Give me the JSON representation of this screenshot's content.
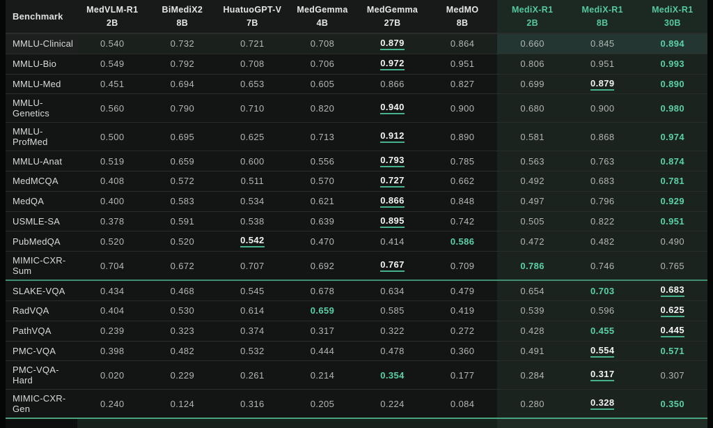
{
  "table": {
    "benchmark_header": "Benchmark",
    "columns": [
      {
        "name": "MedVLM-R1",
        "size": "2B",
        "highlight": false
      },
      {
        "name": "BiMediX2",
        "size": "8B",
        "highlight": false
      },
      {
        "name": "HuatuoGPT-V",
        "size": "7B",
        "highlight": false
      },
      {
        "name": "MedGemma",
        "size": "4B",
        "highlight": false
      },
      {
        "name": "MedGemma",
        "size": "27B",
        "highlight": false
      },
      {
        "name": "MedMO",
        "size": "8B",
        "highlight": false
      },
      {
        "name": "MediX-R1",
        "size": "2B",
        "highlight": true
      },
      {
        "name": "MediX-R1",
        "size": "8B",
        "highlight": true
      },
      {
        "name": "MediX-R1",
        "size": "30B",
        "highlight": true
      }
    ],
    "rows": [
      {
        "benchmark": "MMLU-Clinical",
        "values": [
          "0.540",
          "0.732",
          "0.721",
          "0.708",
          "0.879",
          "0.864",
          "0.660",
          "0.845",
          "0.894"
        ],
        "second": 4,
        "best": 8,
        "highlighted": true,
        "divider_after": false
      },
      {
        "benchmark": "MMLU-Bio",
        "values": [
          "0.549",
          "0.792",
          "0.708",
          "0.706",
          "0.972",
          "0.951",
          "0.806",
          "0.951",
          "0.993"
        ],
        "second": 4,
        "best": 8,
        "highlighted": false,
        "divider_after": false
      },
      {
        "benchmark": "MMLU-Med",
        "values": [
          "0.451",
          "0.694",
          "0.653",
          "0.605",
          "0.866",
          "0.827",
          "0.699",
          "0.879",
          "0.890"
        ],
        "second": 7,
        "best": 8,
        "highlighted": false,
        "divider_after": false
      },
      {
        "benchmark": "MMLU-Genetics",
        "values": [
          "0.560",
          "0.790",
          "0.710",
          "0.820",
          "0.940",
          "0.900",
          "0.680",
          "0.900",
          "0.980"
        ],
        "second": 4,
        "best": 8,
        "highlighted": false,
        "divider_after": false
      },
      {
        "benchmark": "MMLU-ProfMed",
        "values": [
          "0.500",
          "0.695",
          "0.625",
          "0.713",
          "0.912",
          "0.890",
          "0.581",
          "0.868",
          "0.974"
        ],
        "second": 4,
        "best": 8,
        "highlighted": false,
        "divider_after": false
      },
      {
        "benchmark": "MMLU-Anat",
        "values": [
          "0.519",
          "0.659",
          "0.600",
          "0.556",
          "0.793",
          "0.785",
          "0.563",
          "0.763",
          "0.874"
        ],
        "second": 4,
        "best": 8,
        "highlighted": false,
        "divider_after": false
      },
      {
        "benchmark": "MedMCQA",
        "values": [
          "0.408",
          "0.572",
          "0.511",
          "0.570",
          "0.727",
          "0.662",
          "0.492",
          "0.683",
          "0.781"
        ],
        "second": 4,
        "best": 8,
        "highlighted": false,
        "divider_after": false
      },
      {
        "benchmark": "MedQA",
        "values": [
          "0.400",
          "0.583",
          "0.534",
          "0.621",
          "0.866",
          "0.848",
          "0.497",
          "0.796",
          "0.929"
        ],
        "second": 4,
        "best": 8,
        "highlighted": false,
        "divider_after": false
      },
      {
        "benchmark": "USMLE-SA",
        "values": [
          "0.378",
          "0.591",
          "0.538",
          "0.639",
          "0.895",
          "0.742",
          "0.505",
          "0.822",
          "0.951"
        ],
        "second": 4,
        "best": 8,
        "highlighted": false,
        "divider_after": false
      },
      {
        "benchmark": "PubMedQA",
        "values": [
          "0.520",
          "0.520",
          "0.542",
          "0.470",
          "0.414",
          "0.586",
          "0.472",
          "0.482",
          "0.490"
        ],
        "second": 2,
        "best": 5,
        "highlighted": false,
        "divider_after": false
      },
      {
        "benchmark": "MIMIC-CXR-Sum",
        "values": [
          "0.704",
          "0.672",
          "0.707",
          "0.692",
          "0.767",
          "0.709",
          "0.786",
          "0.746",
          "0.765"
        ],
        "second": 4,
        "best": 6,
        "highlighted": false,
        "divider_after": true
      },
      {
        "benchmark": "SLAKE-VQA",
        "values": [
          "0.434",
          "0.468",
          "0.545",
          "0.678",
          "0.634",
          "0.479",
          "0.654",
          "0.703",
          "0.683"
        ],
        "second": 8,
        "best": 7,
        "highlighted": false,
        "divider_after": false
      },
      {
        "benchmark": "RadVQA",
        "values": [
          "0.404",
          "0.530",
          "0.614",
          "0.659",
          "0.585",
          "0.419",
          "0.539",
          "0.596",
          "0.625"
        ],
        "second": 8,
        "best": 3,
        "highlighted": false,
        "divider_after": false
      },
      {
        "benchmark": "PathVQA",
        "values": [
          "0.239",
          "0.323",
          "0.374",
          "0.317",
          "0.322",
          "0.272",
          "0.428",
          "0.455",
          "0.445"
        ],
        "second": 8,
        "best": 7,
        "highlighted": false,
        "divider_after": false
      },
      {
        "benchmark": "PMC-VQA",
        "values": [
          "0.398",
          "0.482",
          "0.532",
          "0.444",
          "0.478",
          "0.360",
          "0.491",
          "0.554",
          "0.571"
        ],
        "second": 7,
        "best": 8,
        "highlighted": false,
        "divider_after": false
      },
      {
        "benchmark": "PMC-VQA-Hard",
        "values": [
          "0.020",
          "0.229",
          "0.261",
          "0.214",
          "0.354",
          "0.177",
          "0.284",
          "0.317",
          "0.307"
        ],
        "second": 7,
        "best": 4,
        "highlighted": false,
        "divider_after": false
      },
      {
        "benchmark": "MIMIC-CXR-Gen",
        "values": [
          "0.240",
          "0.124",
          "0.316",
          "0.205",
          "0.224",
          "0.084",
          "0.280",
          "0.328",
          "0.350"
        ],
        "second": 7,
        "best": 8,
        "highlighted": false,
        "divider_after": true
      }
    ]
  },
  "colors": {
    "accent_green": "#5ad1a6",
    "underline_green": "#48b28e",
    "section_divider_green": "#3f9070",
    "medix_column_bg": "#1b231f",
    "table_bg": "#131514",
    "normal_value_text": "#b2b7b4",
    "header_text": "#e4e7e5",
    "medix_header_text": "#55c89e"
  },
  "legend": {
    "best_style": "bold green = best score",
    "second_style": "white underlined = second-best score"
  }
}
